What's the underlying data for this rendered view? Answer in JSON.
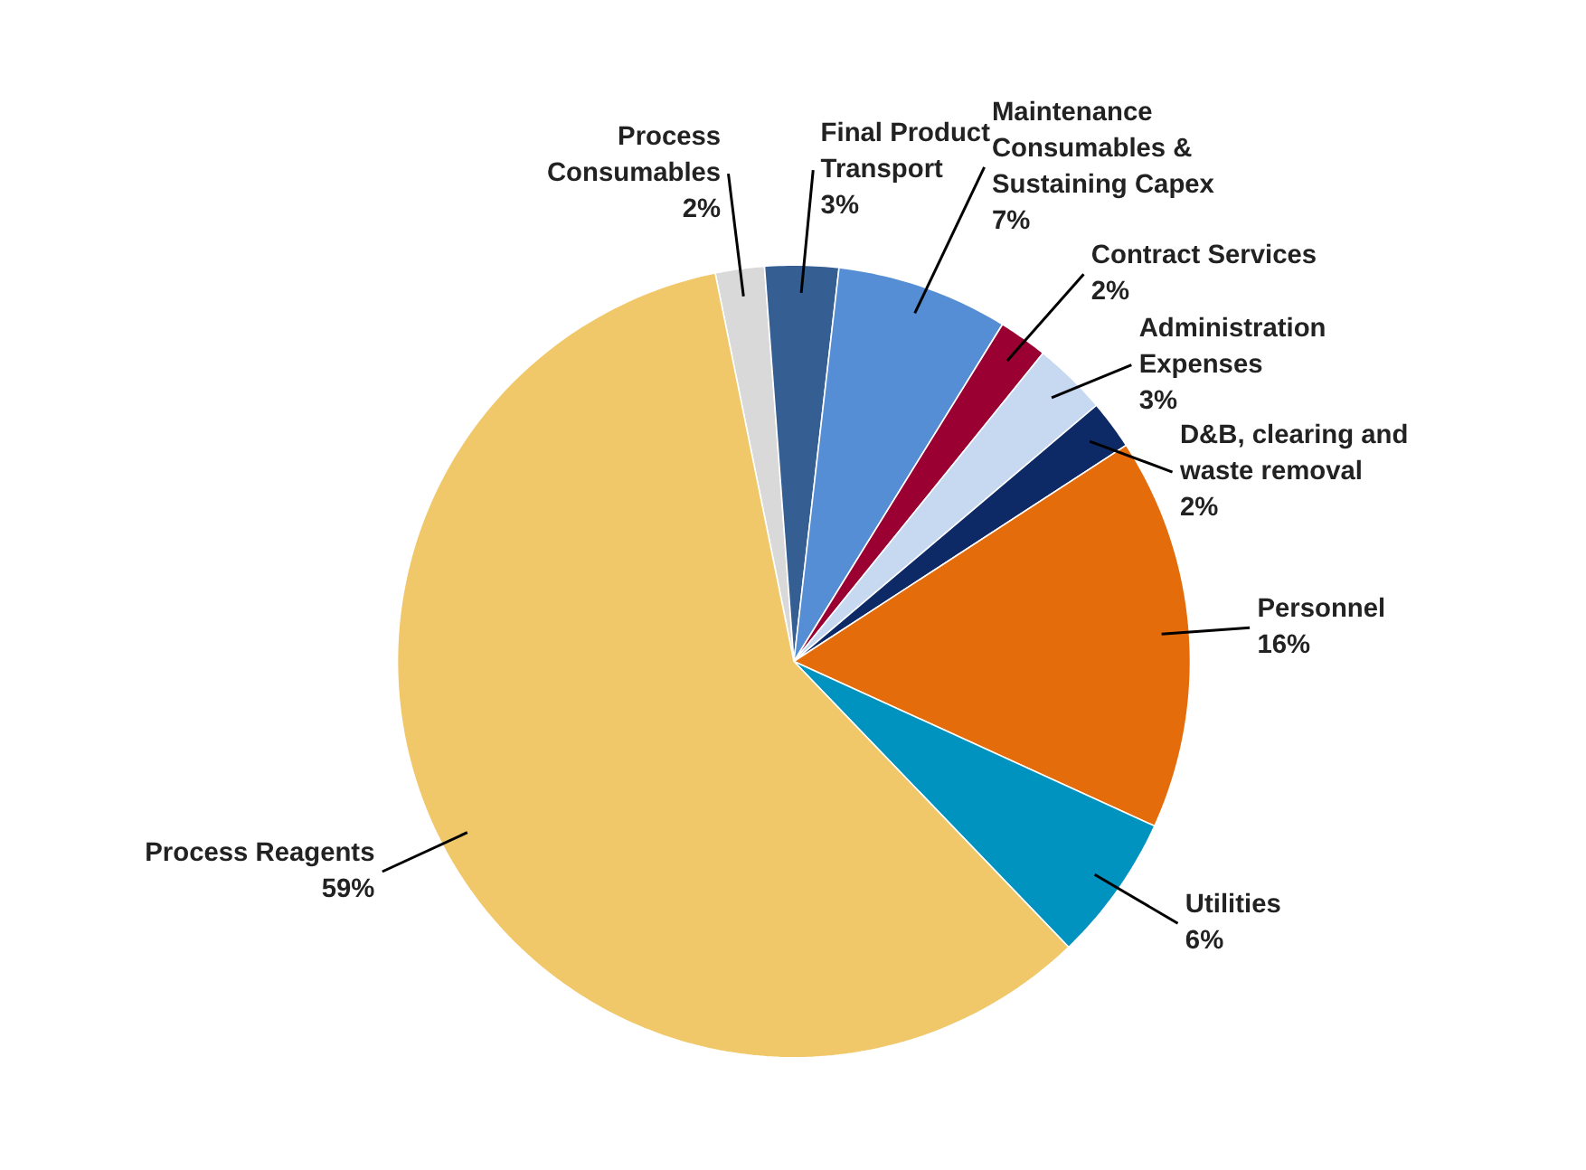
{
  "chart_data": {
    "type": "pie",
    "categories": [
      "Process Consumables",
      "Final Product Transport",
      "Maintenance Consumables & Sustaining Capex",
      "Contract Services",
      "Administration Expenses",
      "D&B, clearing and waste removal",
      "Personnel",
      "Utilities",
      "Process Reagents"
    ],
    "values": [
      2,
      3,
      7,
      2,
      3,
      2,
      16,
      6,
      59
    ],
    "value_labels": [
      "2%",
      "3%",
      "7%",
      "2%",
      "3%",
      "2%",
      "16%",
      "6%",
      "59%"
    ],
    "colors": [
      "#d9d9d9",
      "#355e93",
      "#558ed5",
      "#9b0033",
      "#c6d9f1",
      "#0e2a66",
      "#e46c0a",
      "#0093c0",
      "#f0c86a"
    ]
  }
}
